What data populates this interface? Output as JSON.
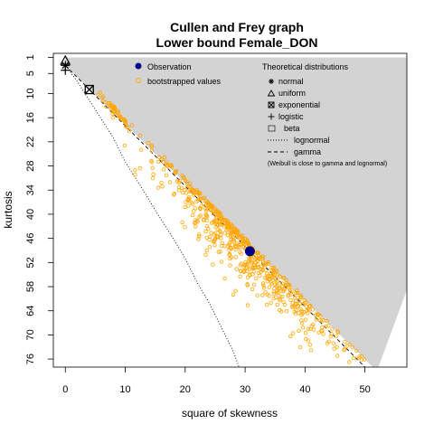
{
  "chart_data": {
    "type": "scatter",
    "title": "Cullen and Frey graph",
    "subtitle": "Lower bound  Female_DON",
    "xlabel": "square of skewness",
    "ylabel": "kurtosis",
    "xlim": [
      -2,
      57
    ],
    "ylim_reversed": [
      0,
      78
    ],
    "x_ticks": [
      "0",
      "10",
      "20",
      "30",
      "40",
      "50"
    ],
    "x_tick_values": [
      0,
      10,
      20,
      30,
      40,
      50
    ],
    "y_ticks": [
      "1",
      "5",
      "10",
      "16",
      "22",
      "28",
      "34",
      "40",
      "46",
      "52",
      "58",
      "64",
      "70",
      "76"
    ],
    "y_tick_values": [
      1,
      5,
      10,
      16,
      22,
      28,
      34,
      40,
      46,
      52,
      58,
      64,
      70,
      76
    ],
    "legend_left": {
      "placement": "top-center",
      "items": [
        {
          "label": "Observation",
          "symbol": "filled-circle",
          "color": "#00008b"
        },
        {
          "label": "bootstrapped values",
          "symbol": "open-circle",
          "color": "#ffa500"
        }
      ]
    },
    "legend_right": {
      "placement": "top-right",
      "title": "Theoretical distributions",
      "items": [
        {
          "label": "normal",
          "symbol": "asterisk"
        },
        {
          "label": "uniform",
          "symbol": "triangle"
        },
        {
          "label": "exponential",
          "symbol": "boxed-x"
        },
        {
          "label": "logistic",
          "symbol": "plus"
        },
        {
          "label": "beta",
          "symbol": "grey-box"
        },
        {
          "label": "lognormal",
          "symbol": "dotted-line"
        },
        {
          "label": "gamma",
          "symbol": "dashed-line"
        }
      ],
      "note": "(Weibull is close to gamma and lognormal)"
    },
    "observation": {
      "x": 30.8,
      "y": 49.2
    },
    "theoretical_points": {
      "normal": {
        "x": 0,
        "y": 3
      },
      "uniform": {
        "x": 0,
        "y": 1.8
      },
      "exponential": {
        "x": 4,
        "y": 9
      },
      "logistic": {
        "x": 0,
        "y": 4.2
      }
    },
    "beta_region": [
      [
        0,
        1
      ],
      [
        57,
        1
      ],
      [
        57,
        58.8
      ],
      [
        52,
        79
      ],
      [
        0,
        3
      ]
    ],
    "gamma_line": {
      "slope": 1.5,
      "intercept": 3
    },
    "lognormal_curve": [
      [
        0,
        3
      ],
      [
        2,
        7
      ],
      [
        5,
        14
      ],
      [
        8,
        21
      ],
      [
        10,
        27
      ],
      [
        13,
        34
      ],
      [
        15,
        39
      ],
      [
        18,
        46
      ],
      [
        20,
        51
      ],
      [
        22,
        57
      ],
      [
        24,
        62
      ],
      [
        26,
        68
      ],
      [
        28,
        74
      ],
      [
        29,
        78
      ]
    ],
    "bootstrap_clusters": [
      {
        "cx": 8.5,
        "cy": 14,
        "sx": 1.5,
        "sy": 1.4,
        "n": 45,
        "tilt": 1.5
      },
      {
        "cx": 27,
        "cy": 44,
        "sx": 6,
        "sy": 4.5,
        "n": 480,
        "tilt": 1.5
      },
      {
        "cx": 38,
        "cy": 61,
        "sx": 5,
        "sy": 4,
        "n": 120,
        "tilt": 1.5
      },
      {
        "cx": 48,
        "cy": 70,
        "sx": 4,
        "sy": 4,
        "n": 15,
        "tilt": 1.2
      }
    ],
    "colors": {
      "beta": "#d3d3d3",
      "bootstrap": "#ffa500",
      "observation": "#00008b"
    }
  }
}
